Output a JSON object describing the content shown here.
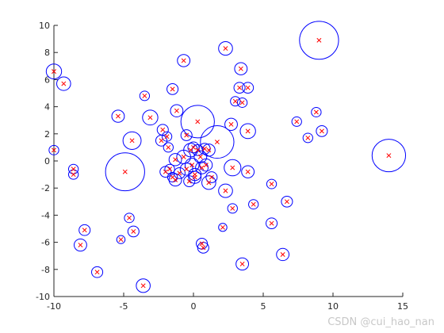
{
  "watermark": "CSDN @cui_hao_nan",
  "chart_data": {
    "type": "scatter",
    "title": "",
    "xlabel": "",
    "ylabel": "",
    "xlim": [
      -10,
      15
    ],
    "ylim": [
      -10,
      10
    ],
    "xticks": [
      -10,
      -5,
      0,
      5,
      10,
      15
    ],
    "yticks": [
      -10,
      -8,
      -6,
      -4,
      -2,
      0,
      2,
      4,
      6,
      8,
      10
    ],
    "grid": false,
    "colors": {
      "marker": "#ff0000",
      "circle": "#0000ff",
      "axis": "#262626"
    },
    "points": [
      {
        "x": 9.0,
        "y": 8.9,
        "r": 1.4
      },
      {
        "x": 14.0,
        "y": 0.4,
        "r": 1.2
      },
      {
        "x": -4.9,
        "y": -0.8,
        "r": 1.4
      },
      {
        "x": 0.3,
        "y": 2.9,
        "r": 1.2
      },
      {
        "x": 1.7,
        "y": 1.4,
        "r": 1.2
      },
      {
        "x": -10.0,
        "y": 6.6,
        "r": 0.55
      },
      {
        "x": -9.3,
        "y": 5.7,
        "r": 0.5
      },
      {
        "x": -10.0,
        "y": 0.8,
        "r": 0.35
      },
      {
        "x": -8.6,
        "y": -0.6,
        "r": 0.35
      },
      {
        "x": -8.6,
        "y": -1.0,
        "r": 0.35
      },
      {
        "x": -7.8,
        "y": -5.1,
        "r": 0.4
      },
      {
        "x": -8.1,
        "y": -6.2,
        "r": 0.45
      },
      {
        "x": -6.9,
        "y": -8.2,
        "r": 0.4
      },
      {
        "x": -5.4,
        "y": 3.3,
        "r": 0.45
      },
      {
        "x": -4.6,
        "y": -4.2,
        "r": 0.35
      },
      {
        "x": -5.2,
        "y": -5.8,
        "r": 0.3
      },
      {
        "x": -4.3,
        "y": -5.2,
        "r": 0.4
      },
      {
        "x": -3.6,
        "y": -9.2,
        "r": 0.5
      },
      {
        "x": -4.4,
        "y": 1.5,
        "r": 0.65
      },
      {
        "x": -3.5,
        "y": 4.8,
        "r": 0.35
      },
      {
        "x": -3.1,
        "y": 3.2,
        "r": 0.55
      },
      {
        "x": -1.5,
        "y": 5.3,
        "r": 0.4
      },
      {
        "x": -0.7,
        "y": 7.4,
        "r": 0.45
      },
      {
        "x": 2.3,
        "y": 8.3,
        "r": 0.5
      },
      {
        "x": 3.4,
        "y": 6.8,
        "r": 0.45
      },
      {
        "x": 3.3,
        "y": 5.4,
        "r": 0.4
      },
      {
        "x": 3.9,
        "y": 5.4,
        "r": 0.4
      },
      {
        "x": 3.0,
        "y": 4.4,
        "r": 0.35
      },
      {
        "x": 3.5,
        "y": 4.3,
        "r": 0.35
      },
      {
        "x": 2.7,
        "y": 2.7,
        "r": 0.45
      },
      {
        "x": 3.9,
        "y": 2.2,
        "r": 0.55
      },
      {
        "x": 7.4,
        "y": 2.9,
        "r": 0.35
      },
      {
        "x": 8.8,
        "y": 3.6,
        "r": 0.35
      },
      {
        "x": 9.2,
        "y": 2.2,
        "r": 0.4
      },
      {
        "x": 8.2,
        "y": 1.7,
        "r": 0.35
      },
      {
        "x": -1.2,
        "y": 3.7,
        "r": 0.45
      },
      {
        "x": -2.2,
        "y": 2.3,
        "r": 0.4
      },
      {
        "x": -2.3,
        "y": 1.5,
        "r": 0.4
      },
      {
        "x": -1.9,
        "y": 1.8,
        "r": 0.35
      },
      {
        "x": -1.8,
        "y": 1.0,
        "r": 0.35
      },
      {
        "x": -0.5,
        "y": 1.9,
        "r": 0.4
      },
      {
        "x": -1.3,
        "y": 0.1,
        "r": 0.45
      },
      {
        "x": -0.7,
        "y": 0.3,
        "r": 0.5
      },
      {
        "x": -0.2,
        "y": 0.8,
        "r": 0.5
      },
      {
        "x": 0.0,
        "y": 1.0,
        "r": 0.4
      },
      {
        "x": 0.3,
        "y": 0.8,
        "r": 0.4
      },
      {
        "x": 0.5,
        "y": 0.3,
        "r": 0.45
      },
      {
        "x": 0.8,
        "y": 0.9,
        "r": 0.4
      },
      {
        "x": 1.1,
        "y": 0.8,
        "r": 0.45
      },
      {
        "x": 0.9,
        "y": -0.3,
        "r": 0.45
      },
      {
        "x": -0.1,
        "y": -0.3,
        "r": 0.5
      },
      {
        "x": -0.5,
        "y": -0.6,
        "r": 0.45
      },
      {
        "x": -1.0,
        "y": -0.9,
        "r": 0.4
      },
      {
        "x": -1.3,
        "y": -1.4,
        "r": 0.45
      },
      {
        "x": -1.7,
        "y": -0.6,
        "r": 0.35
      },
      {
        "x": -1.5,
        "y": -1.2,
        "r": 0.35
      },
      {
        "x": -2.0,
        "y": -0.8,
        "r": 0.4
      },
      {
        "x": 0.1,
        "y": -1.0,
        "r": 0.45
      },
      {
        "x": 0.6,
        "y": -0.5,
        "r": 0.45
      },
      {
        "x": 1.1,
        "y": -1.6,
        "r": 0.5
      },
      {
        "x": 1.3,
        "y": -1.2,
        "r": 0.4
      },
      {
        "x": 0.1,
        "y": -1.2,
        "r": 0.45
      },
      {
        "x": -0.3,
        "y": -1.5,
        "r": 0.4
      },
      {
        "x": 2.8,
        "y": -0.5,
        "r": 0.6
      },
      {
        "x": 3.9,
        "y": -0.8,
        "r": 0.45
      },
      {
        "x": 2.3,
        "y": -2.2,
        "r": 0.5
      },
      {
        "x": 2.8,
        "y": -3.5,
        "r": 0.35
      },
      {
        "x": 4.3,
        "y": -3.2,
        "r": 0.35
      },
      {
        "x": 5.6,
        "y": -1.7,
        "r": 0.35
      },
      {
        "x": 6.7,
        "y": -3.0,
        "r": 0.4
      },
      {
        "x": 5.6,
        "y": -4.6,
        "r": 0.4
      },
      {
        "x": 2.1,
        "y": -4.9,
        "r": 0.3
      },
      {
        "x": 0.6,
        "y": -6.1,
        "r": 0.4
      },
      {
        "x": 0.7,
        "y": -6.4,
        "r": 0.4
      },
      {
        "x": 6.4,
        "y": -6.9,
        "r": 0.45
      },
      {
        "x": 3.5,
        "y": -7.6,
        "r": 0.45
      }
    ]
  }
}
